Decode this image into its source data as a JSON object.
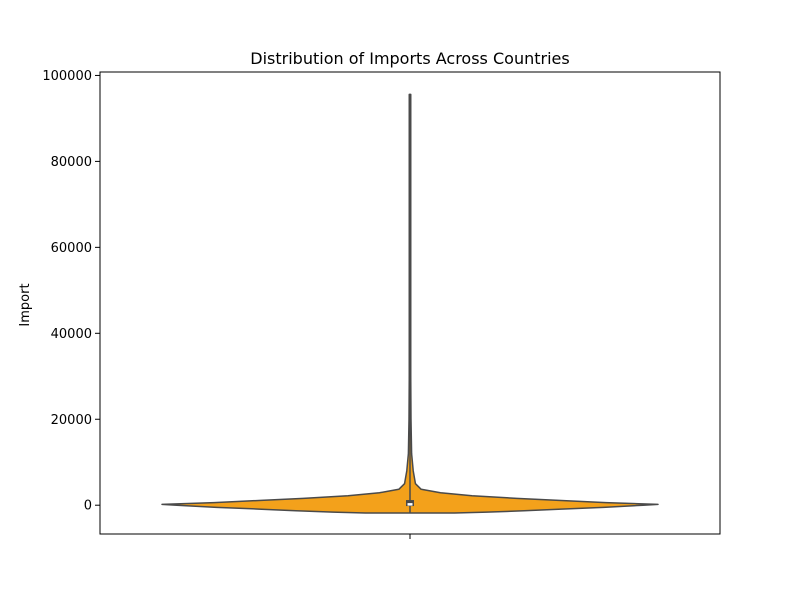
{
  "chart_data": {
    "type": "violin",
    "title": "Distribution of Imports Across Countries",
    "xlabel": "",
    "ylabel": "Import",
    "ylim": [
      -6700,
      100800
    ],
    "y_ticks": [
      0,
      20000,
      40000,
      60000,
      80000,
      100000
    ],
    "y_tick_labels": [
      "0",
      "20000",
      "40000",
      "60000",
      "80000",
      "100000"
    ],
    "x_ticks": [
      ""
    ],
    "grid": false,
    "violin": {
      "min": -1800,
      "max": 95600,
      "max_half_width_fraction": 0.8,
      "density_profile": [
        {
          "y": -1800,
          "width": 0.18
        },
        {
          "y": -1600,
          "width": 0.31
        },
        {
          "y": -1300,
          "width": 0.46
        },
        {
          "y": -900,
          "width": 0.61
        },
        {
          "y": -500,
          "width": 0.78
        },
        {
          "y": 0,
          "width": 0.94
        },
        {
          "y": 200,
          "width": 1.0
        },
        {
          "y": 600,
          "width": 0.79
        },
        {
          "y": 1100,
          "width": 0.61
        },
        {
          "y": 1600,
          "width": 0.43
        },
        {
          "y": 2200,
          "width": 0.25
        },
        {
          "y": 2900,
          "width": 0.123
        },
        {
          "y": 3700,
          "width": 0.045
        },
        {
          "y": 5000,
          "width": 0.022
        },
        {
          "y": 8000,
          "width": 0.013
        },
        {
          "y": 12000,
          "width": 0.0065
        },
        {
          "y": 20000,
          "width": 0.004
        },
        {
          "y": 30000,
          "width": 0.003
        },
        {
          "y": 50000,
          "width": 0.003
        },
        {
          "y": 70000,
          "width": 0.003
        },
        {
          "y": 95600,
          "width": 0.003
        }
      ],
      "q1": -200,
      "median": 200,
      "q3": 1200,
      "whisker_low": -1800,
      "whisker_high": 95600
    },
    "colors": {
      "fill": "#f3a11b",
      "edge": "#4a4a4a",
      "box": "#4a4a4a",
      "median": "#ffffff"
    }
  }
}
